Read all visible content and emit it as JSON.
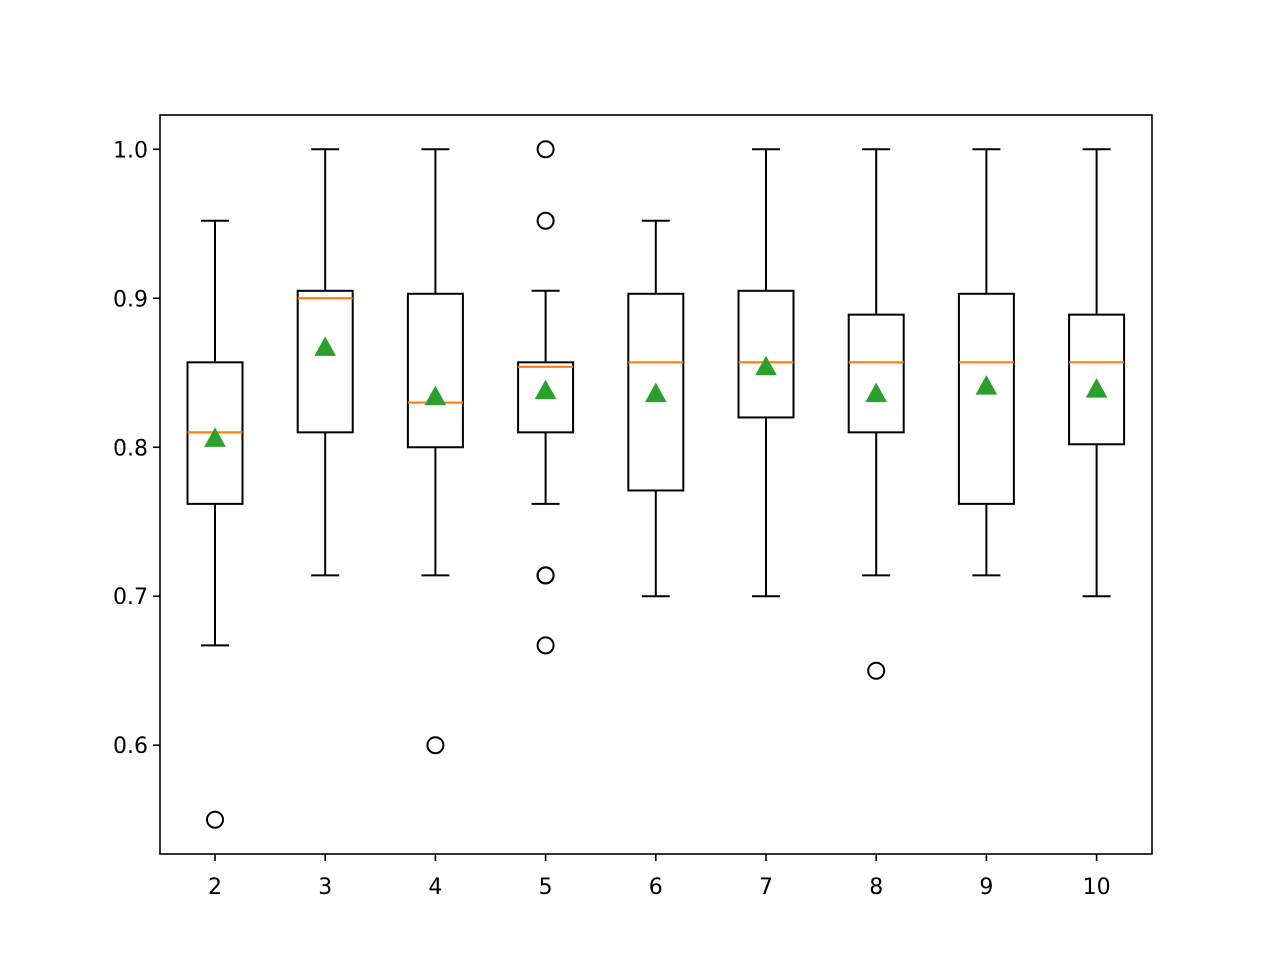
{
  "chart_data": {
    "type": "boxplot",
    "title": "",
    "xlabel": "",
    "ylabel": "",
    "ylim": [
      0.527,
      1.023
    ],
    "yticks": [
      "0.6",
      "0.7",
      "0.8",
      "0.9",
      "1.0"
    ],
    "grid": false,
    "legend": "none",
    "colors": {
      "box": "#000000",
      "median": "#ff7f0e",
      "mean": "#2ca02c",
      "flier": "#000000"
    },
    "categories": [
      "2",
      "3",
      "4",
      "5",
      "6",
      "7",
      "8",
      "9",
      "10"
    ],
    "boxes": [
      {
        "label": "2",
        "whisker_low": 0.667,
        "q1": 0.762,
        "median": 0.81,
        "q3": 0.857,
        "whisker_high": 0.952,
        "mean": 0.806,
        "fliers": [
          0.55
        ]
      },
      {
        "label": "3",
        "whisker_low": 0.714,
        "q1": 0.81,
        "median": 0.9,
        "q3": 0.905,
        "whisker_high": 1.0,
        "mean": 0.867,
        "fliers": []
      },
      {
        "label": "4",
        "whisker_low": 0.714,
        "q1": 0.8,
        "median": 0.83,
        "q3": 0.903,
        "whisker_high": 1.0,
        "mean": 0.834,
        "fliers": [
          0.6
        ]
      },
      {
        "label": "5",
        "whisker_low": 0.762,
        "q1": 0.81,
        "median": 0.854,
        "q3": 0.857,
        "whisker_high": 0.905,
        "mean": 0.838,
        "fliers": [
          1.0,
          0.952,
          0.714,
          0.714,
          0.667
        ]
      },
      {
        "label": "6",
        "whisker_low": 0.7,
        "q1": 0.771,
        "median": 0.857,
        "q3": 0.903,
        "whisker_high": 0.952,
        "mean": 0.836,
        "fliers": []
      },
      {
        "label": "7",
        "whisker_low": 0.7,
        "q1": 0.82,
        "median": 0.857,
        "q3": 0.905,
        "whisker_high": 1.0,
        "mean": 0.854,
        "fliers": []
      },
      {
        "label": "8",
        "whisker_low": 0.714,
        "q1": 0.81,
        "median": 0.857,
        "q3": 0.889,
        "whisker_high": 1.0,
        "mean": 0.836,
        "fliers": [
          0.65
        ]
      },
      {
        "label": "9",
        "whisker_low": 0.714,
        "q1": 0.762,
        "median": 0.857,
        "q3": 0.903,
        "whisker_high": 1.0,
        "mean": 0.841,
        "fliers": []
      },
      {
        "label": "10",
        "whisker_low": 0.7,
        "q1": 0.802,
        "median": 0.857,
        "q3": 0.889,
        "whisker_high": 1.0,
        "mean": 0.839,
        "fliers": []
      }
    ]
  }
}
